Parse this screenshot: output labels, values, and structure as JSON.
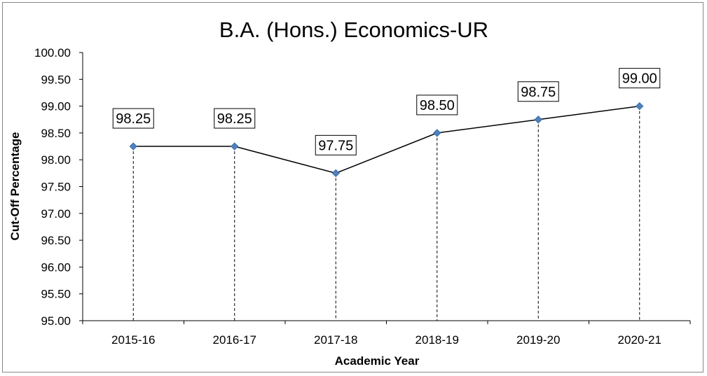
{
  "chart_data": {
    "type": "line",
    "title": "B.A. (Hons.) Economics-UR",
    "xlabel": "Academic Year",
    "ylabel": "Cut-Off Percentage",
    "categories": [
      "2015-16",
      "2016-17",
      "2017-18",
      "2018-19",
      "2019-20",
      "2020-21"
    ],
    "series": [
      {
        "values": [
          98.25,
          98.25,
          97.75,
          98.5,
          98.75,
          99.0
        ],
        "data_labels": [
          "98.25",
          "98.25",
          "97.75",
          "98.50",
          "98.75",
          "99.00"
        ]
      }
    ],
    "ylim": [
      95.0,
      100.0
    ],
    "yticks": [
      "95.00",
      "95.50",
      "96.00",
      "96.50",
      "97.00",
      "97.50",
      "98.00",
      "98.50",
      "99.00",
      "99.50",
      "100.00"
    ],
    "grid": false,
    "drop_lines": true,
    "colors": {
      "line": "#000000",
      "marker": "#4F81BD",
      "marker_edge": "#3A6FA8",
      "drop_line": "#000000"
    }
  }
}
